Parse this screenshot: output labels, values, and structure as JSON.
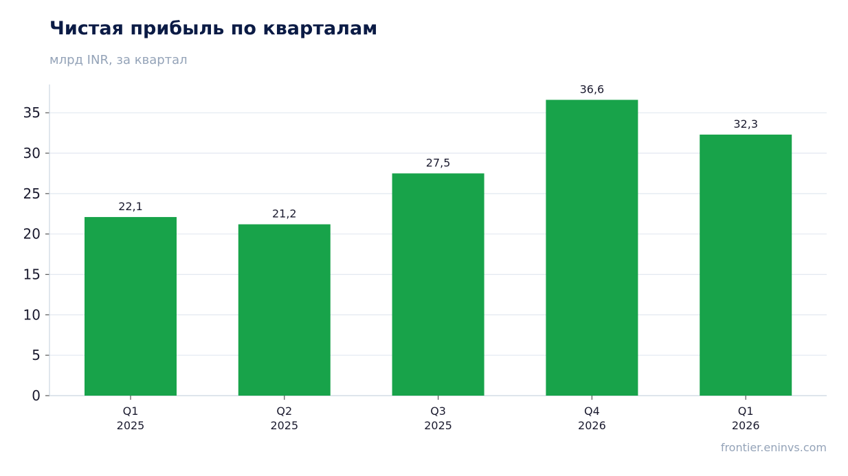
{
  "header": {
    "title": "Чистая прибыль по кварталам",
    "subtitle": "млрд INR, за квартал"
  },
  "footer": {
    "source": "frontier.eninvs.com"
  },
  "colors": {
    "bar": "#18a34a",
    "grid": "#e2e8f0",
    "axis": "#cbd5e1"
  },
  "chart_data": {
    "type": "bar",
    "title": "Чистая прибыль по кварталам",
    "subtitle": "млрд INR, за квартал",
    "categories": [
      [
        "Q1",
        "2025"
      ],
      [
        "Q2",
        "2025"
      ],
      [
        "Q3",
        "2025"
      ],
      [
        "Q4",
        "2026"
      ],
      [
        "Q1",
        "2026"
      ]
    ],
    "values": [
      22.1,
      21.2,
      27.5,
      36.6,
      32.3
    ],
    "value_labels": [
      "22,1",
      "21,2",
      "27,5",
      "36,6",
      "32,3"
    ],
    "yticks": [
      0,
      5,
      10,
      15,
      20,
      25,
      30,
      35
    ],
    "ylim": [
      0,
      38.5
    ],
    "grid": true
  }
}
